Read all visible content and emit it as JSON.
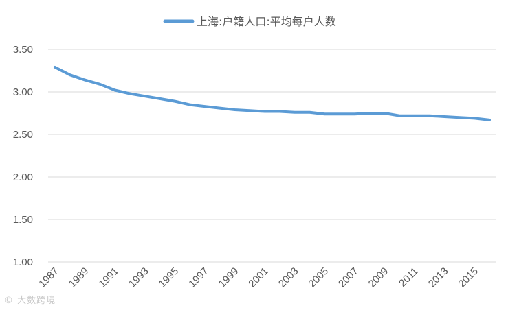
{
  "chart_data": {
    "type": "line",
    "legend": {
      "position": "top"
    },
    "colors": {
      "series": "#5b9bd5",
      "grid": "#d9d9d9",
      "text": "#595959"
    },
    "ylim": [
      1.0,
      3.5
    ],
    "yticks": [
      "3.50",
      "3.00",
      "2.50",
      "2.00",
      "1.50",
      "1.00"
    ],
    "x": [
      1987,
      1988,
      1989,
      1990,
      1991,
      1992,
      1993,
      1994,
      1995,
      1996,
      1997,
      1998,
      1999,
      2000,
      2001,
      2002,
      2003,
      2004,
      2005,
      2006,
      2007,
      2008,
      2009,
      2010,
      2011,
      2012,
      2013,
      2014,
      2015,
      2016
    ],
    "xticks": [
      "1987",
      "1989",
      "1991",
      "1993",
      "1995",
      "1997",
      "1999",
      "2001",
      "2003",
      "2005",
      "2007",
      "2009",
      "2011",
      "2013",
      "2015"
    ],
    "grid": true,
    "series": [
      {
        "name": "上海:户籍人口:平均每户人数",
        "values": [
          3.29,
          3.2,
          3.14,
          3.09,
          3.02,
          2.98,
          2.95,
          2.92,
          2.89,
          2.85,
          2.83,
          2.81,
          2.79,
          2.78,
          2.77,
          2.77,
          2.76,
          2.76,
          2.74,
          2.74,
          2.74,
          2.75,
          2.75,
          2.72,
          2.72,
          2.72,
          2.71,
          2.7,
          2.69,
          2.67
        ]
      }
    ]
  },
  "watermark": "大数跨境"
}
